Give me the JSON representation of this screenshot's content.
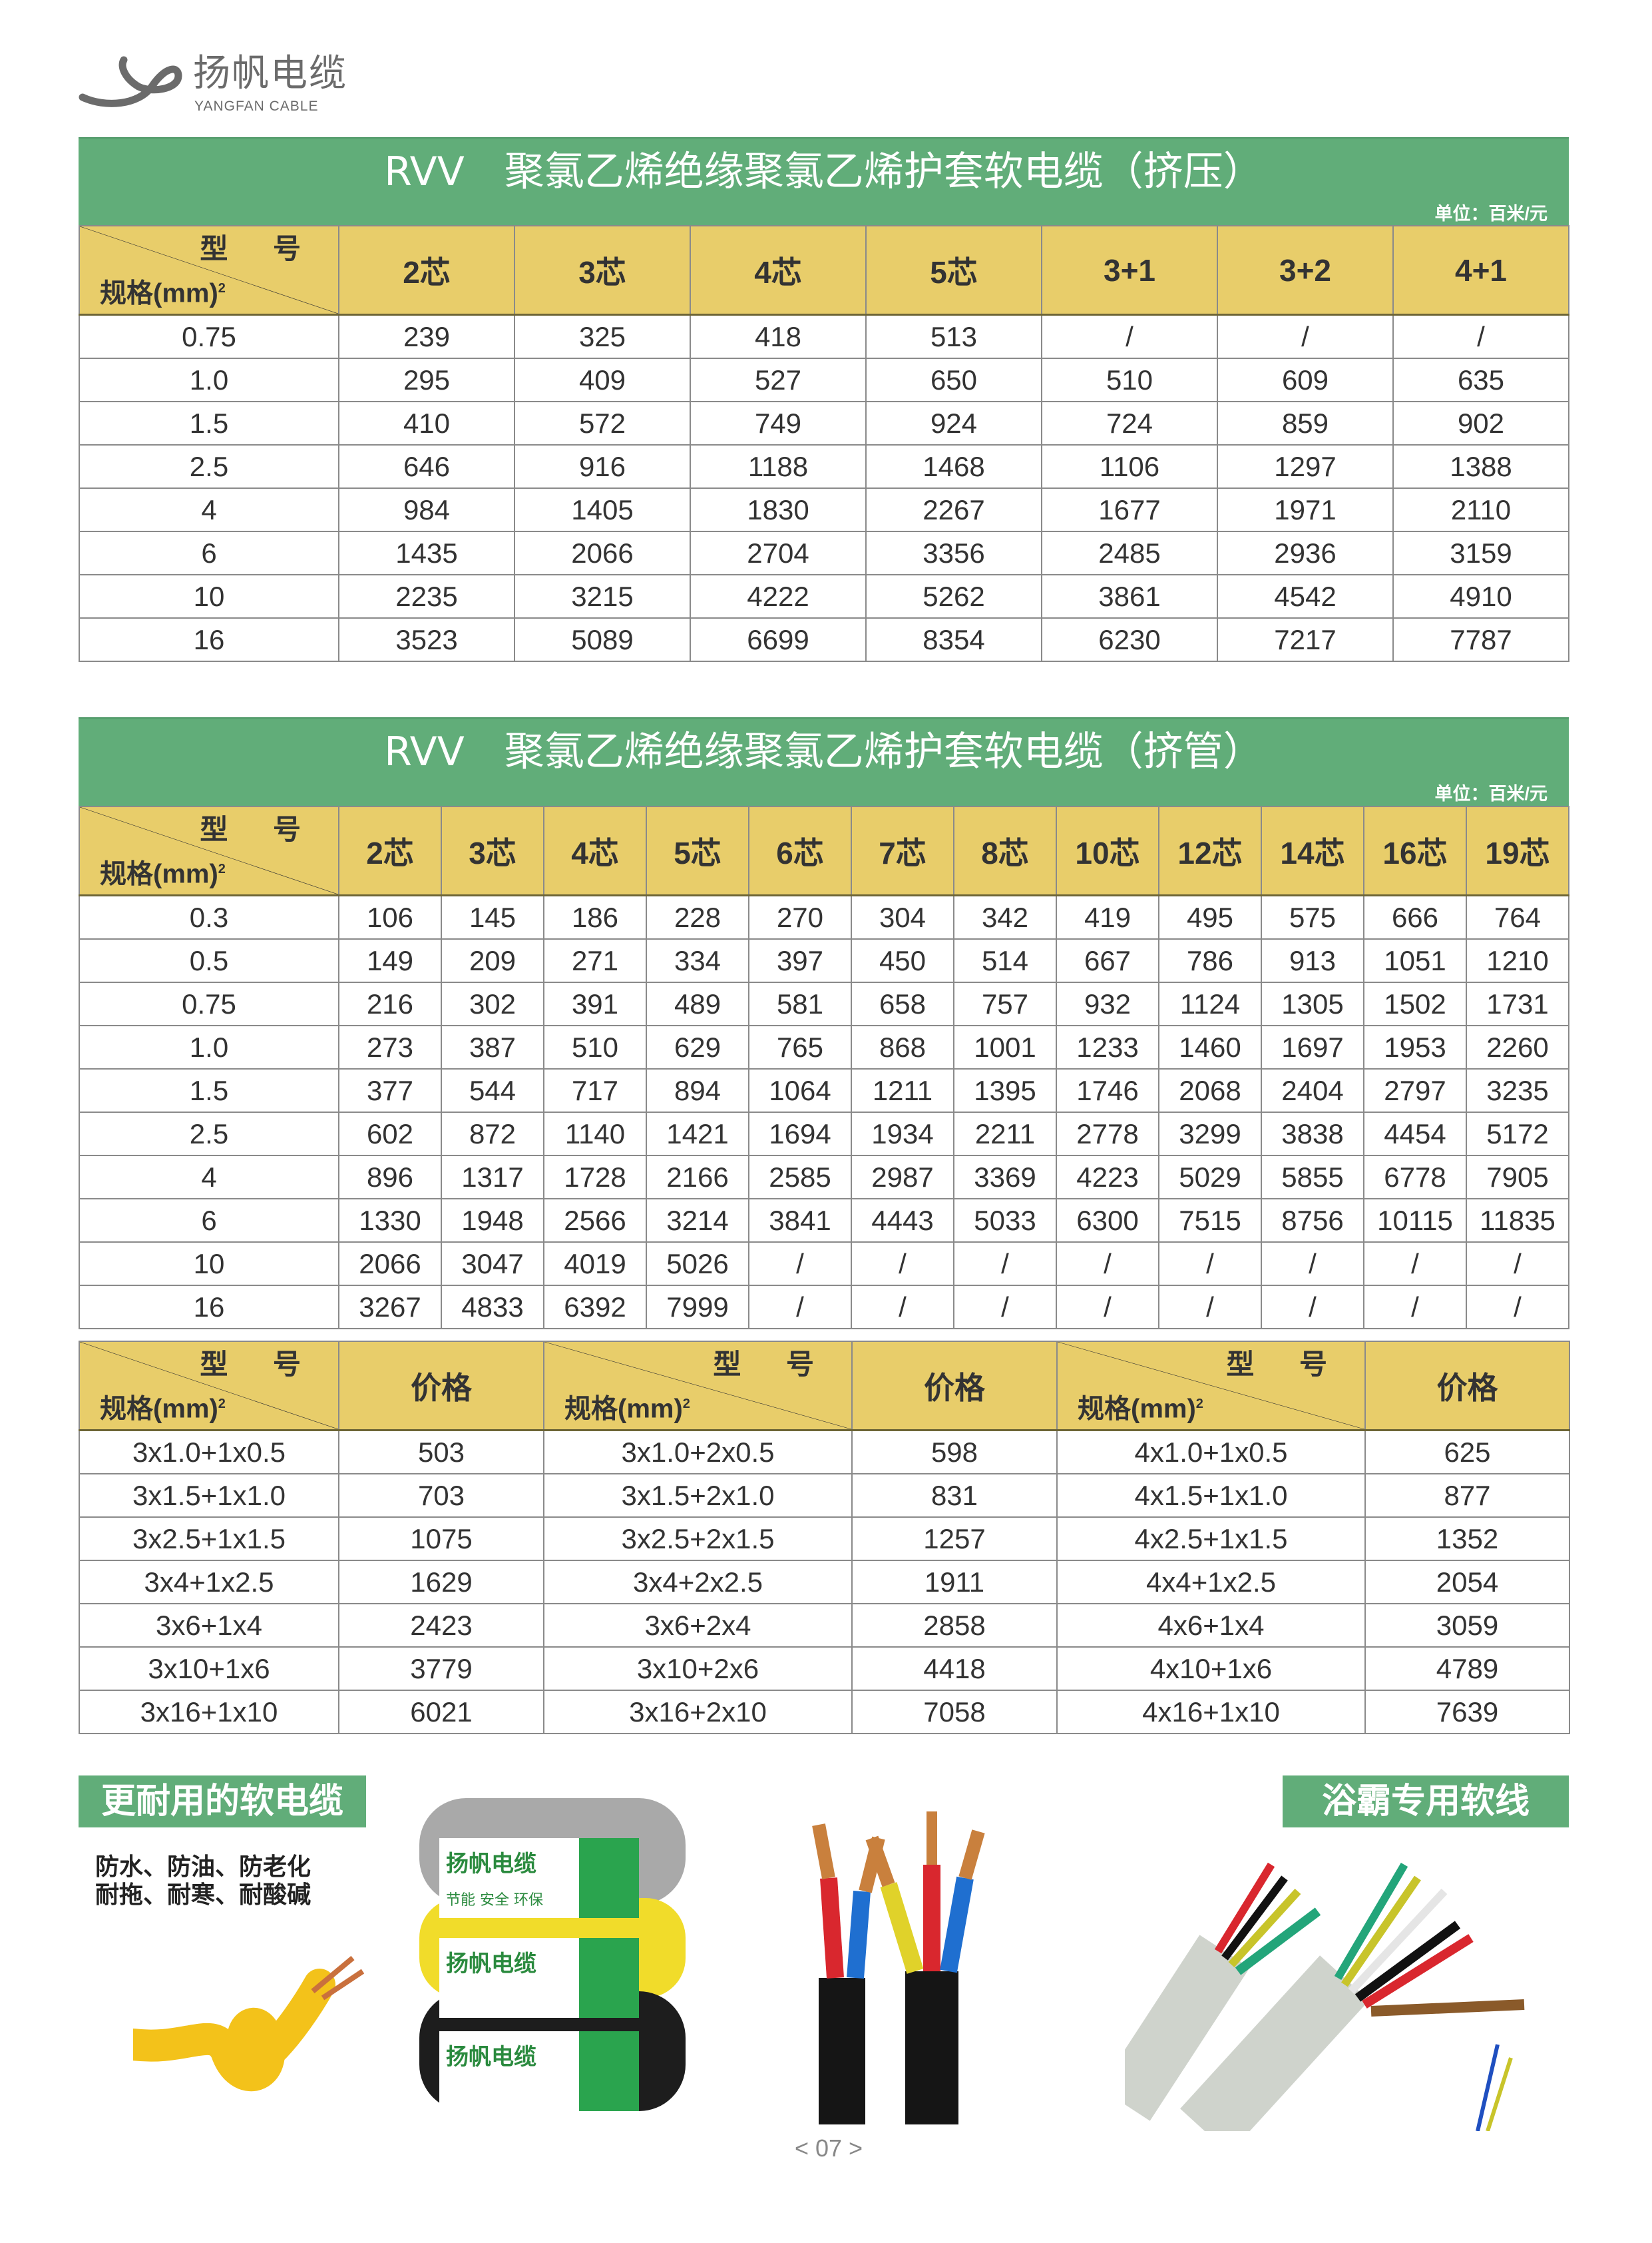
{
  "brand": {
    "name_cn": "扬帆电缆",
    "name_en": "YANGFAN CABLE"
  },
  "colors": {
    "title_green": "#61ad79",
    "header_yellow": "#e8cd6a"
  },
  "table1": {
    "model": "RVV",
    "title": "聚氯乙烯绝缘聚氯乙烯护套软电缆（挤压）",
    "unit": "单位：百米/元",
    "corner_model": "型 号",
    "corner_spec": "规格(mm)",
    "corner_sup": "2",
    "columns": [
      "2芯",
      "3芯",
      "4芯",
      "5芯",
      "3+1",
      "3+2",
      "4+1"
    ],
    "rows": [
      [
        "0.75",
        "239",
        "325",
        "418",
        "513",
        "/",
        "/",
        "/"
      ],
      [
        "1.0",
        "295",
        "409",
        "527",
        "650",
        "510",
        "609",
        "635"
      ],
      [
        "1.5",
        "410",
        "572",
        "749",
        "924",
        "724",
        "859",
        "902"
      ],
      [
        "2.5",
        "646",
        "916",
        "1188",
        "1468",
        "1106",
        "1297",
        "1388"
      ],
      [
        "4",
        "984",
        "1405",
        "1830",
        "2267",
        "1677",
        "1971",
        "2110"
      ],
      [
        "6",
        "1435",
        "2066",
        "2704",
        "3356",
        "2485",
        "2936",
        "3159"
      ],
      [
        "10",
        "2235",
        "3215",
        "4222",
        "5262",
        "3861",
        "4542",
        "4910"
      ],
      [
        "16",
        "3523",
        "5089",
        "6699",
        "8354",
        "6230",
        "7217",
        "7787"
      ]
    ]
  },
  "table2": {
    "model": "RVV",
    "title": "聚氯乙烯绝缘聚氯乙烯护套软电缆（挤管）",
    "unit": "单位：百米/元",
    "corner_model": "型 号",
    "corner_spec": "规格(mm)",
    "corner_sup": "2",
    "columns": [
      "2芯",
      "3芯",
      "4芯",
      "5芯",
      "6芯",
      "7芯",
      "8芯",
      "10芯",
      "12芯",
      "14芯",
      "16芯",
      "19芯"
    ],
    "rows": [
      [
        "0.3",
        "106",
        "145",
        "186",
        "228",
        "270",
        "304",
        "342",
        "419",
        "495",
        "575",
        "666",
        "764"
      ],
      [
        "0.5",
        "149",
        "209",
        "271",
        "334",
        "397",
        "450",
        "514",
        "667",
        "786",
        "913",
        "1051",
        "1210"
      ],
      [
        "0.75",
        "216",
        "302",
        "391",
        "489",
        "581",
        "658",
        "757",
        "932",
        "1124",
        "1305",
        "1502",
        "1731"
      ],
      [
        "1.0",
        "273",
        "387",
        "510",
        "629",
        "765",
        "868",
        "1001",
        "1233",
        "1460",
        "1697",
        "1953",
        "2260"
      ],
      [
        "1.5",
        "377",
        "544",
        "717",
        "894",
        "1064",
        "1211",
        "1395",
        "1746",
        "2068",
        "2404",
        "2797",
        "3235"
      ],
      [
        "2.5",
        "602",
        "872",
        "1140",
        "1421",
        "1694",
        "1934",
        "2211",
        "2778",
        "3299",
        "3838",
        "4454",
        "5172"
      ],
      [
        "4",
        "896",
        "1317",
        "1728",
        "2166",
        "2585",
        "2987",
        "3369",
        "4223",
        "5029",
        "5855",
        "6778",
        "7905"
      ],
      [
        "6",
        "1330",
        "1948",
        "2566",
        "3214",
        "3841",
        "4443",
        "5033",
        "6300",
        "7515",
        "8756",
        "10115",
        "11835"
      ],
      [
        "10",
        "2066",
        "3047",
        "4019",
        "5026",
        "/",
        "/",
        "/",
        "/",
        "/",
        "/",
        "/",
        "/"
      ],
      [
        "16",
        "3267",
        "4833",
        "6392",
        "7999",
        "/",
        "/",
        "/",
        "/",
        "/",
        "/",
        "/",
        "/"
      ]
    ],
    "combo": {
      "price_label": "价格",
      "rows": [
        [
          "3x1.0+1x0.5",
          "503",
          "3x1.0+2x0.5",
          "598",
          "4x1.0+1x0.5",
          "625"
        ],
        [
          "3x1.5+1x1.0",
          "703",
          "3x1.5+2x1.0",
          "831",
          "4x1.5+1x1.0",
          "877"
        ],
        [
          "3x2.5+1x1.5",
          "1075",
          "3x2.5+2x1.5",
          "1257",
          "4x2.5+1x1.5",
          "1352"
        ],
        [
          "3x4+1x2.5",
          "1629",
          "3x4+2x2.5",
          "1911",
          "4x4+1x2.5",
          "2054"
        ],
        [
          "3x6+1x4",
          "2423",
          "3x6+2x4",
          "2858",
          "4x6+1x4",
          "3059"
        ],
        [
          "3x10+1x6",
          "3779",
          "3x10+2x6",
          "4418",
          "4x10+1x6",
          "4789"
        ],
        [
          "3x16+1x10",
          "6021",
          "3x16+2x10",
          "7058",
          "4x16+1x10",
          "7639"
        ]
      ]
    }
  },
  "promo": {
    "left_tag": "更耐用的软电缆",
    "features": [
      "防水、防油、防老化",
      "耐拖、耐寒、耐酸碱"
    ],
    "right_tag": "浴霸专用软线",
    "spool_label": "扬帆电缆",
    "spool_sub": "节能 安全 环保"
  },
  "page_number": "< 07 >"
}
